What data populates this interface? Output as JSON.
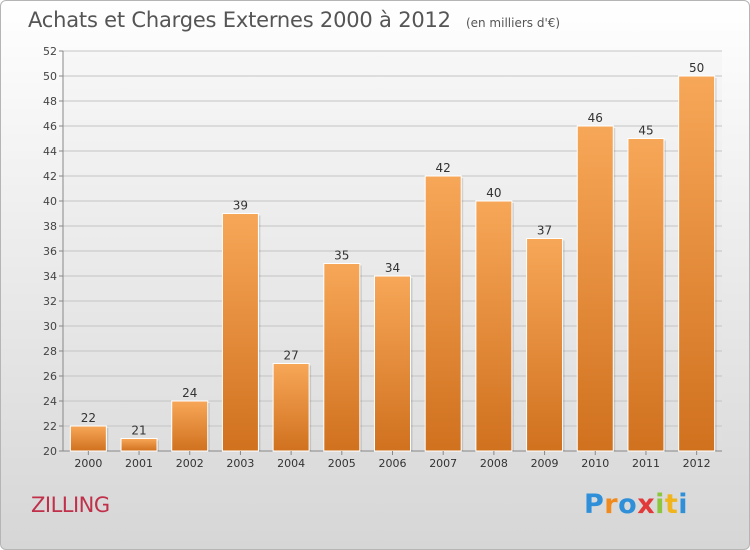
{
  "chart_data": {
    "type": "bar",
    "title": "Achats et Charges Externes 2000 à 2012",
    "subtitle": "(en milliers d'€)",
    "categories": [
      "2000",
      "2001",
      "2002",
      "2003",
      "2004",
      "2005",
      "2006",
      "2007",
      "2008",
      "2009",
      "2010",
      "2011",
      "2012"
    ],
    "values": [
      22,
      21,
      24,
      39,
      27,
      35,
      34,
      42,
      40,
      37,
      46,
      45,
      50
    ],
    "ylim": [
      20,
      52
    ],
    "yticks": [
      20,
      22,
      24,
      26,
      28,
      30,
      32,
      34,
      36,
      38,
      40,
      42,
      44,
      46,
      48,
      50,
      52
    ],
    "grid": true,
    "xlabel": "",
    "ylabel": "",
    "bar_colors": {
      "top": "#f7a758",
      "bottom": "#d0711e"
    }
  },
  "commune": "ZILLING",
  "logo": {
    "letters": [
      "P",
      "r",
      "o",
      "x",
      "i",
      "t",
      "i"
    ],
    "colors": [
      "#2f8fd8",
      "#f08a1c",
      "#2f8fd8",
      "#e23a3a",
      "#8cc63f",
      "#f0b41c",
      "#2f8fd8"
    ]
  }
}
